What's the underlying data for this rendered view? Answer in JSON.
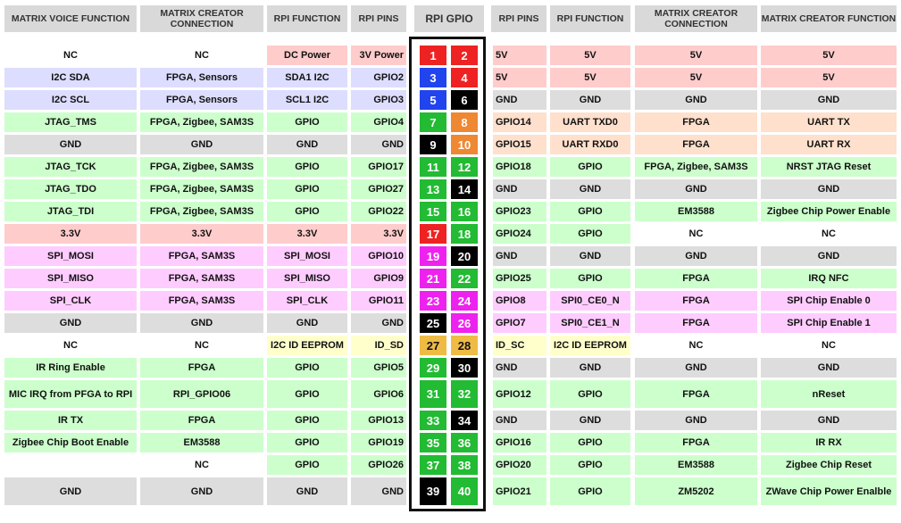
{
  "headers": [
    "MATRIX VOICE FUNCTION",
    "MATRIX CREATOR CONNECTION",
    "RPI FUNCTION",
    "RPI PINS",
    "RPI GPIO",
    "RPI PINS",
    "RPI FUNCTION",
    "MATRIX CREATOR CONNECTION",
    "MATRIX CREATOR FUNCTION"
  ],
  "colors": {
    "power": "#ffcccc",
    "i2c": "#ddddff",
    "gpio": "#ccffcc",
    "gnd": "#dddddd",
    "uart": "#ffe0cc",
    "spi": "#ffccff",
    "eeprom": "#ffffcc",
    "none": "#ffffff",
    "pin_red": "#ee2222",
    "pin_blue": "#2244ee",
    "pin_green": "#22bb33",
    "pin_black": "#000000",
    "pin_orange": "#ee8833",
    "pin_magenta": "#ee22ee",
    "pin_yellow": "#eebb44"
  },
  "rows": [
    {
      "left": [
        "NC",
        "NC",
        "DC Power",
        "3V Power"
      ],
      "lc": [
        "none",
        "none",
        "power",
        "power"
      ],
      "pins": [
        "1",
        "2"
      ],
      "pc": [
        "pin_red",
        "pin_red"
      ],
      "right": [
        "5V",
        "5V",
        "5V",
        "5V"
      ],
      "rc": [
        "power",
        "power",
        "power",
        "power"
      ]
    },
    {
      "left": [
        "I2C SDA",
        "FPGA, Sensors",
        "SDA1 I2C",
        "GPIO2"
      ],
      "lc": [
        "i2c",
        "i2c",
        "i2c",
        "i2c"
      ],
      "pins": [
        "3",
        "4"
      ],
      "pc": [
        "pin_blue",
        "pin_red"
      ],
      "right": [
        "5V",
        "5V",
        "5V",
        "5V"
      ],
      "rc": [
        "power",
        "power",
        "power",
        "power"
      ]
    },
    {
      "left": [
        "I2C SCL",
        "FPGA, Sensors",
        "SCL1 I2C",
        "GPIO3"
      ],
      "lc": [
        "i2c",
        "i2c",
        "i2c",
        "i2c"
      ],
      "pins": [
        "5",
        "6"
      ],
      "pc": [
        "pin_blue",
        "pin_black"
      ],
      "right": [
        "GND",
        "GND",
        "GND",
        "GND"
      ],
      "rc": [
        "gnd",
        "gnd",
        "gnd",
        "gnd"
      ]
    },
    {
      "left": [
        "JTAG_TMS",
        "FPGA, Zigbee, SAM3S",
        "GPIO",
        "GPIO4"
      ],
      "lc": [
        "gpio",
        "gpio",
        "gpio",
        "gpio"
      ],
      "pins": [
        "7",
        "8"
      ],
      "pc": [
        "pin_green",
        "pin_orange"
      ],
      "right": [
        "GPIO14",
        "UART TXD0",
        "FPGA",
        "UART TX"
      ],
      "rc": [
        "uart",
        "uart",
        "uart",
        "uart"
      ]
    },
    {
      "left": [
        "GND",
        "GND",
        "GND",
        "GND"
      ],
      "lc": [
        "gnd",
        "gnd",
        "gnd",
        "gnd"
      ],
      "pins": [
        "9",
        "10"
      ],
      "pc": [
        "pin_black",
        "pin_orange"
      ],
      "right": [
        "GPIO15",
        "UART RXD0",
        "FPGA",
        "UART RX"
      ],
      "rc": [
        "uart",
        "uart",
        "uart",
        "uart"
      ]
    },
    {
      "left": [
        "JTAG_TCK",
        "FPGA, Zigbee, SAM3S",
        "GPIO",
        "GPIO17"
      ],
      "lc": [
        "gpio",
        "gpio",
        "gpio",
        "gpio"
      ],
      "pins": [
        "11",
        "12"
      ],
      "pc": [
        "pin_green",
        "pin_green"
      ],
      "right": [
        "GPIO18",
        "GPIO",
        "FPGA, Zigbee, SAM3S",
        "NRST JTAG Reset"
      ],
      "rc": [
        "gpio",
        "gpio",
        "gpio",
        "gpio"
      ]
    },
    {
      "left": [
        "JTAG_TDO",
        "FPGA, Zigbee, SAM3S",
        "GPIO",
        "GPIO27"
      ],
      "lc": [
        "gpio",
        "gpio",
        "gpio",
        "gpio"
      ],
      "pins": [
        "13",
        "14"
      ],
      "pc": [
        "pin_green",
        "pin_black"
      ],
      "right": [
        "GND",
        "GND",
        "GND",
        "GND"
      ],
      "rc": [
        "gnd",
        "gnd",
        "gnd",
        "gnd"
      ]
    },
    {
      "left": [
        "JTAG_TDI",
        "FPGA, Zigbee, SAM3S",
        "GPIO",
        "GPIO22"
      ],
      "lc": [
        "gpio",
        "gpio",
        "gpio",
        "gpio"
      ],
      "pins": [
        "15",
        "16"
      ],
      "pc": [
        "pin_green",
        "pin_green"
      ],
      "right": [
        "GPIO23",
        "GPIO",
        "EM3588",
        "Zigbee Chip Power Enable"
      ],
      "rc": [
        "gpio",
        "gpio",
        "gpio",
        "gpio"
      ]
    },
    {
      "left": [
        "3.3V",
        "3.3V",
        "3.3V",
        "3.3V"
      ],
      "lc": [
        "power",
        "power",
        "power",
        "power"
      ],
      "pins": [
        "17",
        "18"
      ],
      "pc": [
        "pin_red",
        "pin_green"
      ],
      "right": [
        "GPIO24",
        "GPIO",
        "NC",
        "NC"
      ],
      "rc": [
        "gpio",
        "gpio",
        "none",
        "none"
      ]
    },
    {
      "left": [
        "SPI_MOSI",
        "FPGA, SAM3S",
        "SPI_MOSI",
        "GPIO10"
      ],
      "lc": [
        "spi",
        "spi",
        "spi",
        "spi"
      ],
      "pins": [
        "19",
        "20"
      ],
      "pc": [
        "pin_magenta",
        "pin_black"
      ],
      "right": [
        "GND",
        "GND",
        "GND",
        "GND"
      ],
      "rc": [
        "gnd",
        "gnd",
        "gnd",
        "gnd"
      ]
    },
    {
      "left": [
        "SPI_MISO",
        "FPGA, SAM3S",
        "SPI_MISO",
        "GPIO9"
      ],
      "lc": [
        "spi",
        "spi",
        "spi",
        "spi"
      ],
      "pins": [
        "21",
        "22"
      ],
      "pc": [
        "pin_magenta",
        "pin_green"
      ],
      "right": [
        "GPIO25",
        "GPIO",
        "FPGA",
        "IRQ NFC"
      ],
      "rc": [
        "gpio",
        "gpio",
        "gpio",
        "gpio"
      ]
    },
    {
      "left": [
        "SPI_CLK",
        "FPGA, SAM3S",
        "SPI_CLK",
        "GPIO11"
      ],
      "lc": [
        "spi",
        "spi",
        "spi",
        "spi"
      ],
      "pins": [
        "23",
        "24"
      ],
      "pc": [
        "pin_magenta",
        "pin_magenta"
      ],
      "right": [
        "GPIO8",
        "SPI0_CE0_N",
        "FPGA",
        "SPI Chip Enable 0"
      ],
      "rc": [
        "spi",
        "spi",
        "spi",
        "spi"
      ]
    },
    {
      "left": [
        "GND",
        "GND",
        "GND",
        "GND"
      ],
      "lc": [
        "gnd",
        "gnd",
        "gnd",
        "gnd"
      ],
      "pins": [
        "25",
        "26"
      ],
      "pc": [
        "pin_black",
        "pin_magenta"
      ],
      "right": [
        "GPIO7",
        "SPI0_CE1_N",
        "FPGA",
        "SPI Chip Enable 1"
      ],
      "rc": [
        "spi",
        "spi",
        "spi",
        "spi"
      ]
    },
    {
      "left": [
        "NC",
        "NC",
        "I2C ID EEPROM",
        "ID_SD"
      ],
      "lc": [
        "none",
        "none",
        "eeprom",
        "eeprom"
      ],
      "pins": [
        "27",
        "28"
      ],
      "pc": [
        "pin_yellow",
        "pin_yellow"
      ],
      "right": [
        "ID_SC",
        "I2C ID EEPROM",
        "NC",
        "NC"
      ],
      "rc": [
        "eeprom",
        "eeprom",
        "none",
        "none"
      ]
    },
    {
      "left": [
        "IR Ring Enable",
        "FPGA",
        "GPIO",
        "GPIO5"
      ],
      "lc": [
        "gpio",
        "gpio",
        "gpio",
        "gpio"
      ],
      "pins": [
        "29",
        "30"
      ],
      "pc": [
        "pin_green",
        "pin_black"
      ],
      "right": [
        "GND",
        "GND",
        "GND",
        "GND"
      ],
      "rc": [
        "gnd",
        "gnd",
        "gnd",
        "gnd"
      ]
    },
    {
      "left": [
        "MIC IRQ from PFGA to RPI",
        "RPI_GPIO06",
        "GPIO",
        "GPIO6"
      ],
      "lc": [
        "gpio",
        "gpio",
        "gpio",
        "gpio"
      ],
      "pins": [
        "31",
        "32"
      ],
      "pc": [
        "pin_green",
        "pin_green"
      ],
      "right": [
        "GPIO12",
        "GPIO",
        "FPGA",
        "nReset"
      ],
      "rc": [
        "gpio",
        "gpio",
        "gpio",
        "gpio"
      ]
    },
    {
      "left": [
        "IR TX",
        "FPGA",
        "GPIO",
        "GPIO13"
      ],
      "lc": [
        "gpio",
        "gpio",
        "gpio",
        "gpio"
      ],
      "pins": [
        "33",
        "34"
      ],
      "pc": [
        "pin_green",
        "pin_black"
      ],
      "right": [
        "GND",
        "GND",
        "GND",
        "GND"
      ],
      "rc": [
        "gnd",
        "gnd",
        "gnd",
        "gnd"
      ]
    },
    {
      "left": [
        "Zigbee Chip Boot Enable",
        "EM3588",
        "GPIO",
        "GPIO19"
      ],
      "lc": [
        "gpio",
        "gpio",
        "gpio",
        "gpio"
      ],
      "pins": [
        "35",
        "36"
      ],
      "pc": [
        "pin_green",
        "pin_green"
      ],
      "right": [
        "GPIO16",
        "GPIO",
        "FPGA",
        "IR RX"
      ],
      "rc": [
        "gpio",
        "gpio",
        "gpio",
        "gpio"
      ]
    },
    {
      "left": [
        "",
        "NC",
        "GPIO",
        "GPIO26"
      ],
      "lc": [
        "none",
        "none",
        "gpio",
        "gpio"
      ],
      "pins": [
        "37",
        "38"
      ],
      "pc": [
        "pin_green",
        "pin_green"
      ],
      "right": [
        "GPIO20",
        "GPIO",
        "EM3588",
        "Zigbee Chip Reset"
      ],
      "rc": [
        "gpio",
        "gpio",
        "gpio",
        "gpio"
      ]
    },
    {
      "left": [
        "GND",
        "GND",
        "GND",
        "GND"
      ],
      "lc": [
        "gnd",
        "gnd",
        "gnd",
        "gnd"
      ],
      "pins": [
        "39",
        "40"
      ],
      "pc": [
        "pin_black",
        "pin_green"
      ],
      "right": [
        "GPIO21",
        "GPIO",
        "ZM5202",
        "ZWave Chip Power Enalble"
      ],
      "rc": [
        "gpio",
        "gpio",
        "gpio",
        "gpio"
      ]
    }
  ]
}
